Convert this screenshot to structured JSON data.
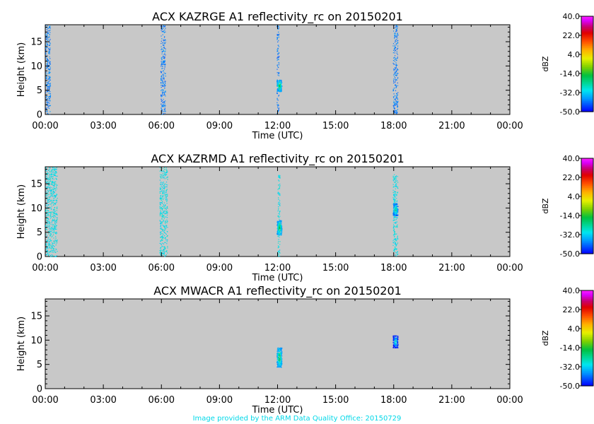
{
  "footer_text": "Image provided by the ARM Data Quality Office: 20150729",
  "chart_data": [
    {
      "type": "heatmap",
      "title": "ACX KAZRGE A1 reflectivity_rc on 20150201",
      "xlabel": "Time (UTC)",
      "ylabel": "Height (km)",
      "x_ticks": [
        "00:00",
        "03:00",
        "06:00",
        "09:00",
        "12:00",
        "15:00",
        "18:00",
        "21:00",
        "00:00"
      ],
      "y_ticks": [
        "0",
        "5",
        "10",
        "15"
      ],
      "xlim_hours": [
        0,
        24
      ],
      "ylim_km": [
        0,
        18.5
      ],
      "background_color": "#c8c8c8",
      "colorbar": {
        "label": "dBZ",
        "ticks": [
          "40.0",
          "22.0",
          "4.0",
          "-14.0",
          "-32.0",
          "-50.0"
        ],
        "range": [
          -50,
          40
        ]
      },
      "features": [
        {
          "kind": "column",
          "t_start": 0.0,
          "t_end": 0.25,
          "z_top": 18.5,
          "dbz": -40
        },
        {
          "kind": "column",
          "t_start": 5.95,
          "t_end": 6.2,
          "z_top": 18.5,
          "dbz": -40
        },
        {
          "kind": "column",
          "t_start": 11.95,
          "t_end": 12.05,
          "z_top": 18.5,
          "dbz": -40
        },
        {
          "kind": "blob",
          "t_start": 11.95,
          "t_end": 12.2,
          "z_bottom": 4.8,
          "z_top": 7.2,
          "dbz": -15
        },
        {
          "kind": "column",
          "t_start": 17.95,
          "t_end": 18.2,
          "z_top": 18.5,
          "dbz": -40
        }
      ]
    },
    {
      "type": "heatmap",
      "title": "ACX KAZRMD A1 reflectivity_rc on 20150201",
      "xlabel": "Time (UTC)",
      "ylabel": "Height (km)",
      "x_ticks": [
        "00:00",
        "03:00",
        "06:00",
        "09:00",
        "12:00",
        "15:00",
        "18:00",
        "21:00",
        "00:00"
      ],
      "y_ticks": [
        "0",
        "5",
        "10",
        "15"
      ],
      "xlim_hours": [
        0,
        24
      ],
      "ylim_km": [
        0,
        18.5
      ],
      "background_color": "#c8c8c8",
      "colorbar": {
        "label": "dBZ",
        "ticks": [
          "40.0",
          "22.0",
          "4.0",
          "-14.0",
          "-32.0",
          "-50.0"
        ],
        "range": [
          -50,
          40
        ]
      },
      "features": [
        {
          "kind": "column",
          "t_start": 0.0,
          "t_end": 0.6,
          "z_top": 18.5,
          "dbz": -30
        },
        {
          "kind": "column",
          "t_start": 5.9,
          "t_end": 6.3,
          "z_top": 18.5,
          "dbz": -30
        },
        {
          "kind": "column",
          "t_start": 12.0,
          "t_end": 12.1,
          "z_top": 17.0,
          "dbz": -30
        },
        {
          "kind": "blob",
          "t_start": 11.95,
          "t_end": 12.2,
          "z_bottom": 4.5,
          "z_top": 7.5,
          "dbz": -15
        },
        {
          "kind": "column",
          "t_start": 17.95,
          "t_end": 18.2,
          "z_top": 17.0,
          "dbz": -30
        },
        {
          "kind": "blob",
          "t_start": 17.95,
          "t_end": 18.2,
          "z_bottom": 8.5,
          "z_top": 11.0,
          "dbz": -20
        }
      ]
    },
    {
      "type": "heatmap",
      "title": "ACX MWACR A1 reflectivity_rc on 20150201",
      "xlabel": "Time (UTC)",
      "ylabel": "Height (km)",
      "x_ticks": [
        "00:00",
        "03:00",
        "06:00",
        "09:00",
        "12:00",
        "15:00",
        "18:00",
        "21:00",
        "00:00"
      ],
      "y_ticks": [
        "0",
        "5",
        "10",
        "15"
      ],
      "xlim_hours": [
        0,
        24
      ],
      "ylim_km": [
        0,
        18.5
      ],
      "background_color": "#c8c8c8",
      "colorbar": {
        "label": "dBZ",
        "ticks": [
          "40.0",
          "22.0",
          "4.0",
          "-14.0",
          "-32.0",
          "-50.0"
        ],
        "range": [
          -50,
          40
        ]
      },
      "features": [
        {
          "kind": "blob",
          "t_start": 11.95,
          "t_end": 12.2,
          "z_bottom": 4.5,
          "z_top": 8.5,
          "dbz": -15
        },
        {
          "kind": "blob",
          "t_start": 17.95,
          "t_end": 18.2,
          "z_bottom": 8.5,
          "z_top": 11.0,
          "dbz": -25
        }
      ]
    }
  ]
}
